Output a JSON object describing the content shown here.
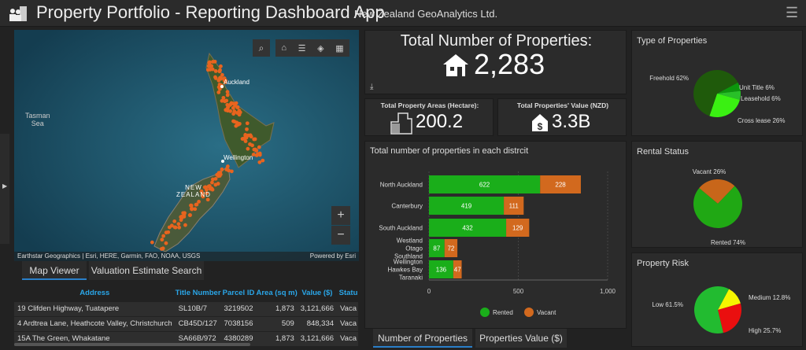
{
  "header": {
    "title": "Property Portfolio - Reporting Dashboard App",
    "org": "New Zealand GeoAnalytics Ltd.",
    "menu_icon": "hamburger-icon",
    "logo_icon": "people-building-icon"
  },
  "map": {
    "labels": {
      "sea": "Tasman\nSea",
      "auckland": "Auckland",
      "wellington": "Wellington",
      "nz": "NEW\nZEALAND"
    },
    "attribution": "Earthstar Geographics | Esri, HERE, Garmin, FAO, NOAA, USGS",
    "powered": "Powered by Esri",
    "tools": [
      "search-icon",
      "home-icon",
      "list-icon",
      "layers-icon",
      "basemap-gallery-icon"
    ],
    "zoom_in": "+",
    "zoom_out": "−",
    "point_color": "#e8641e"
  },
  "left_tabs": [
    {
      "label": "Map Viewer",
      "active": true
    },
    {
      "label": "Valuation Estimate Search",
      "active": false
    }
  ],
  "table": {
    "columns": [
      "Address",
      "Title Number",
      "Parcel ID",
      "Area (sq m)",
      "Value ($)",
      "Statu"
    ],
    "rows": [
      [
        "19 Clifden Highway, Tuatapere",
        "SL10B/7",
        "3219502",
        "1,873",
        "3,121,666",
        "Vaca"
      ],
      [
        "4 Ardtrea Lane, Heathcote Valley, Christchurch",
        "CB45D/127",
        "7038156",
        "509",
        "848,334",
        "Vaca"
      ],
      [
        "15A The Green, Whakatane",
        "SA66B/972",
        "4380289",
        "1,873",
        "3,121,666",
        "Vaca"
      ]
    ]
  },
  "kpi": {
    "total_title": "Total Number of Properties:",
    "total_value": "2,283",
    "area_title": "Total Property Areas (Hectare):",
    "area_value": "200.2",
    "value_title": "Total Properties' Value (NZD)",
    "value_value": "3.3B"
  },
  "center_tabs": [
    {
      "label": "Number of Properties",
      "active": true
    },
    {
      "label": "Properties Value ($)",
      "active": false
    }
  ],
  "chart_data": [
    {
      "type": "bar",
      "stacked": true,
      "orientation": "horizontal",
      "title": "Total number of properties in each distrcit",
      "categories": [
        "North Auckland",
        "Canterbury",
        "South Auckland",
        "Westland\nOtago\nSouthland",
        "Wellington\nHawkes Bay\nTaranaki"
      ],
      "series": [
        {
          "name": "Rented",
          "color": "#1aae1a",
          "values": [
            622,
            419,
            432,
            87,
            136
          ]
        },
        {
          "name": "Vacant",
          "color": "#d2691e",
          "values": [
            228,
            111,
            129,
            72,
            47
          ]
        }
      ],
      "xlim": [
        0,
        1000
      ],
      "xticks": [
        "0",
        "500",
        "1,000"
      ],
      "grid": true,
      "legend": "bottom"
    },
    {
      "type": "pie",
      "title": "Type of Properties",
      "slices": [
        {
          "label": "Unit Title 6%",
          "value": 6,
          "color": "#0c960c"
        },
        {
          "label": "Leasehold 6%",
          "value": 6,
          "color": "#28c028"
        },
        {
          "label": "Cross lease 26%",
          "value": 26,
          "color": "#3af012"
        },
        {
          "label": "Freehold 62%",
          "value": 62,
          "color": "#1f5a0b"
        }
      ]
    },
    {
      "type": "pie",
      "title": "Rental Status",
      "slices": [
        {
          "label": "Vacant 26%",
          "value": 26,
          "color": "#c8661a"
        },
        {
          "label": "Rented 74%",
          "value": 74,
          "color": "#20a814"
        }
      ]
    },
    {
      "type": "pie",
      "title": "Property Risk",
      "slices": [
        {
          "label": "Medium 12.8%",
          "value": 12.8,
          "color": "#f5f500"
        },
        {
          "label": "High 25.7%",
          "value": 25.7,
          "color": "#ea0f0f"
        },
        {
          "label": "Low 61.5%",
          "value": 61.5,
          "color": "#22bb30"
        }
      ]
    }
  ]
}
